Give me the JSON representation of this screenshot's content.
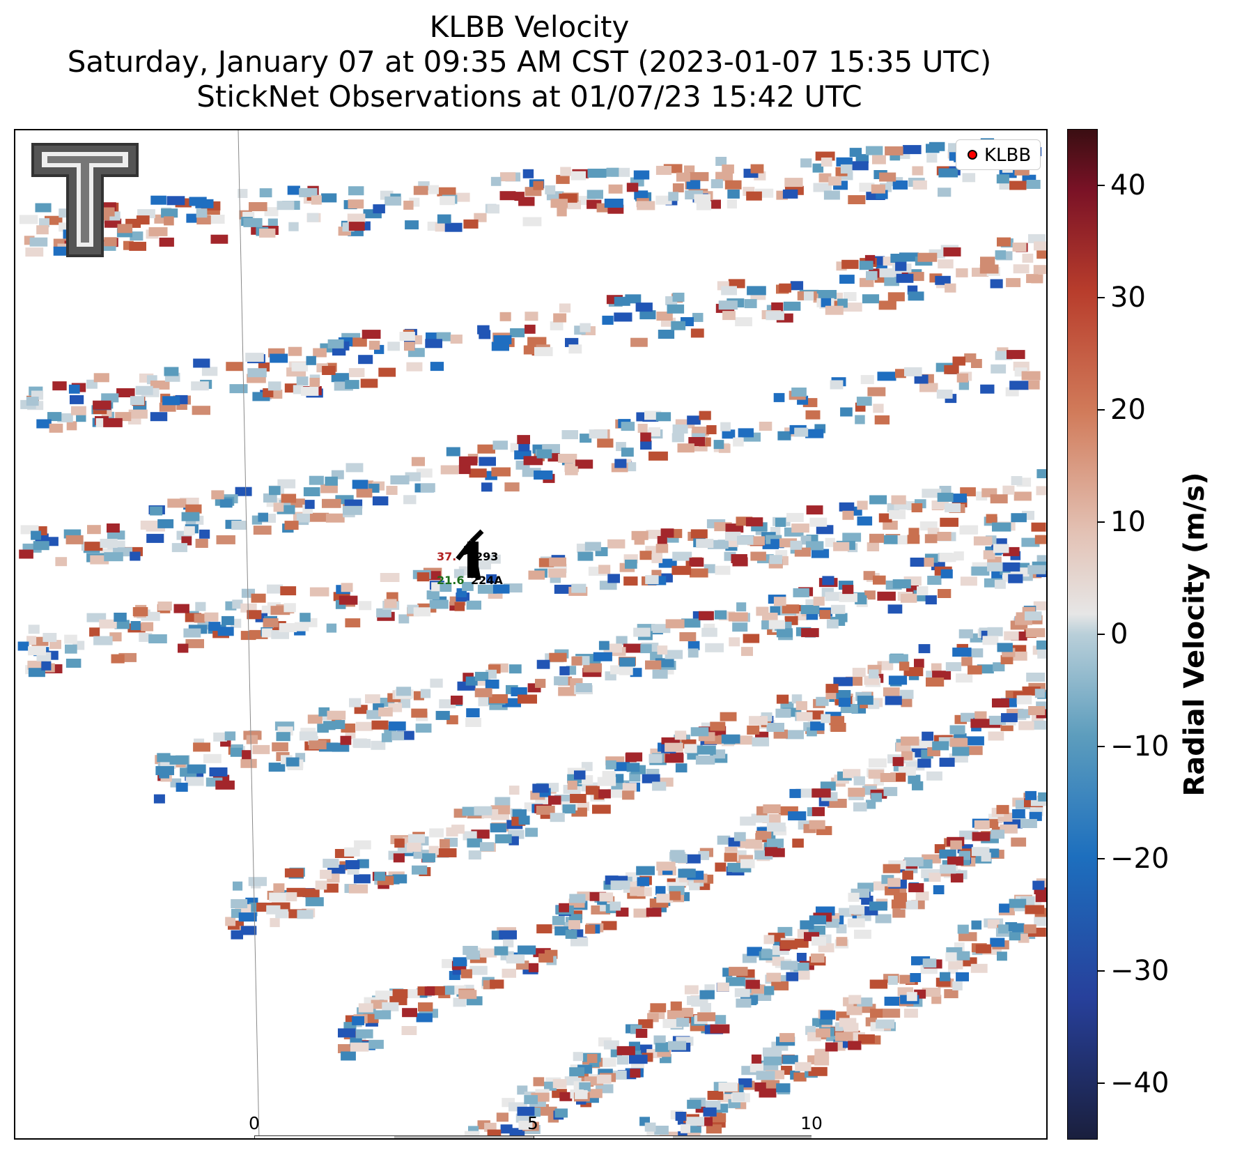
{
  "title": {
    "line1": "KLBB Velocity",
    "line2": "Saturday, January 07 at 09:35 AM CST (2023-01-07 15:35 UTC)",
    "line3": "StickNet Observations at 01/07/23 15:42 UTC"
  },
  "legend": {
    "label": "KLBB",
    "marker_color": "#ff0000"
  },
  "colorbar": {
    "label": "Radial Velocity (m/s)",
    "range": [
      -45,
      45
    ],
    "ticks": [
      "40",
      "30",
      "20",
      "10",
      "0",
      "−10",
      "−20",
      "−30",
      "−40"
    ],
    "tick_values": [
      40,
      30,
      20,
      10,
      0,
      -10,
      -20,
      -30,
      -40
    ]
  },
  "stations": [
    {
      "id": "293",
      "value": "37.",
      "value_color": "#b22222"
    },
    {
      "id": "224A",
      "value": "21.6",
      "value_color": "#1a6e1a"
    }
  ],
  "scalebar": {
    "labels": [
      "0",
      "5",
      "10"
    ],
    "unit": "km"
  },
  "logo": {
    "name": "texas-tech-double-t-logo"
  }
}
